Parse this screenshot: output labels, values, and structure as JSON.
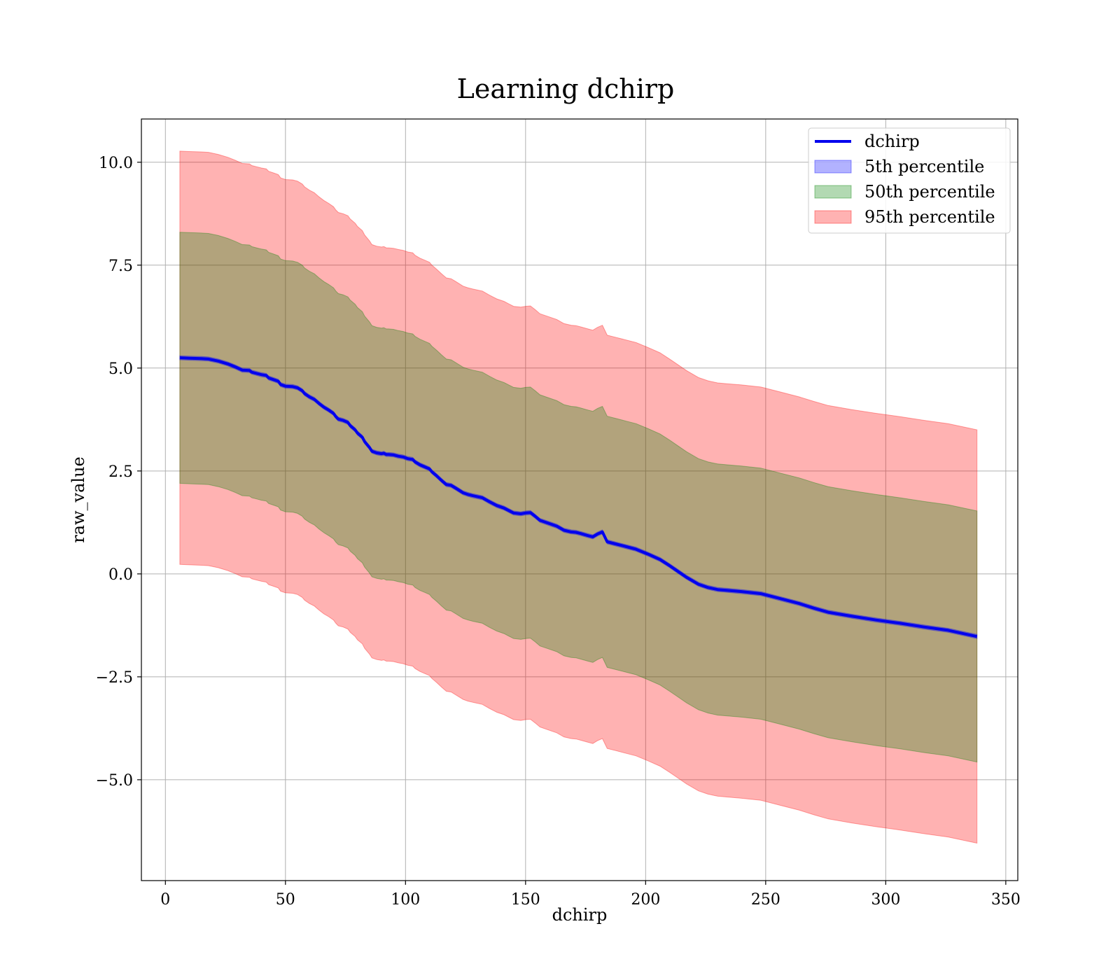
{
  "chart_data": {
    "type": "line",
    "title": "Learning dchirp",
    "xlabel": "dchirp",
    "ylabel": "raw_value",
    "xlim": [
      -10,
      355
    ],
    "ylim": [
      -7.45,
      11.05
    ],
    "x_ticks": [
      0,
      50,
      100,
      150,
      200,
      250,
      300,
      350
    ],
    "x_tick_labels": [
      "0",
      "50",
      "100",
      "150",
      "200",
      "250",
      "300",
      "350"
    ],
    "y_ticks": [
      -5.0,
      -2.5,
      0.0,
      2.5,
      5.0,
      7.5,
      10.0
    ],
    "y_tick_labels": [
      "−5.0",
      "−2.5",
      "0.0",
      "2.5",
      "5.0",
      "7.5",
      "10.0"
    ],
    "grid": true,
    "legend_position": "top-right",
    "x": [
      6,
      10,
      15,
      18,
      22,
      26,
      29,
      32,
      35,
      36,
      38,
      40,
      42,
      43,
      45,
      47,
      48,
      50,
      53,
      55,
      57,
      58,
      60,
      62,
      64,
      66,
      68,
      70,
      71,
      72,
      74,
      76,
      77,
      79,
      80,
      82,
      83,
      85,
      86,
      88,
      90,
      91,
      92,
      93,
      95,
      97,
      99,
      101,
      103,
      104,
      106,
      108,
      110,
      111,
      113,
      115,
      117,
      119,
      121,
      124,
      126,
      128,
      132,
      135,
      138,
      141,
      143,
      145,
      148,
      150,
      152,
      154,
      156,
      159,
      163,
      166,
      169,
      171,
      173,
      176,
      178,
      180,
      182,
      184,
      188,
      192,
      196,
      201,
      206,
      210,
      213,
      217,
      222,
      226,
      230,
      234,
      240,
      248,
      256,
      264,
      270,
      276,
      286,
      296,
      306,
      316,
      326,
      338
    ],
    "series": [
      {
        "name": "dchirp",
        "kind": "line",
        "color": "#0000ee",
        "values": [
          5.25,
          5.24,
          5.23,
          5.22,
          5.17,
          5.1,
          5.03,
          4.95,
          4.94,
          4.9,
          4.87,
          4.84,
          4.82,
          4.76,
          4.72,
          4.68,
          4.6,
          4.56,
          4.55,
          4.52,
          4.45,
          4.38,
          4.3,
          4.24,
          4.14,
          4.05,
          3.98,
          3.9,
          3.82,
          3.76,
          3.73,
          3.68,
          3.6,
          3.5,
          3.42,
          3.32,
          3.21,
          3.07,
          2.98,
          2.94,
          2.92,
          2.93,
          2.9,
          2.9,
          2.89,
          2.86,
          2.84,
          2.8,
          2.78,
          2.72,
          2.65,
          2.6,
          2.55,
          2.48,
          2.38,
          2.27,
          2.17,
          2.15,
          2.08,
          1.97,
          1.93,
          1.9,
          1.85,
          1.75,
          1.66,
          1.6,
          1.54,
          1.48,
          1.46,
          1.48,
          1.49,
          1.4,
          1.3,
          1.24,
          1.16,
          1.06,
          1.02,
          1.01,
          0.98,
          0.93,
          0.9,
          0.97,
          1.02,
          0.78,
          0.72,
          0.66,
          0.6,
          0.48,
          0.35,
          0.2,
          0.08,
          -0.08,
          -0.25,
          -0.33,
          -0.38,
          -0.4,
          -0.43,
          -0.48,
          -0.6,
          -0.72,
          -0.83,
          -0.93,
          -1.03,
          -1.12,
          -1.2,
          -1.29,
          -1.37,
          -1.52
        ]
      },
      {
        "name": "5th percentile",
        "kind": "band",
        "color": "#0000ff",
        "half_width": 0.05
      },
      {
        "name": "50th percentile",
        "kind": "band",
        "color": "#008000",
        "half_width": 3.05
      },
      {
        "name": "95th percentile",
        "kind": "band",
        "color": "#ff0000",
        "half_width": 5.02
      }
    ]
  },
  "colors": {
    "background": "#ffffff",
    "line": "#0000ee",
    "band_5th": "#0000ff",
    "band_50th": "#008000",
    "band_95th": "#ff0000"
  }
}
